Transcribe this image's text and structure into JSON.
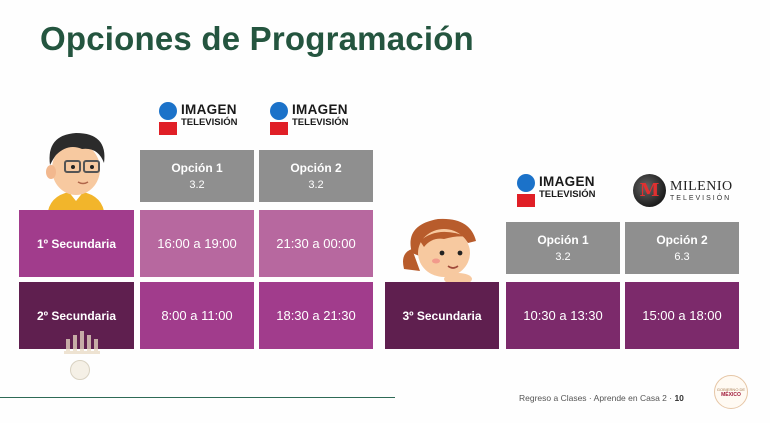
{
  "title": "Opciones de Programación",
  "logos": {
    "imagen": {
      "name": "IMAGEN",
      "sub": "TELEVISIÓN"
    },
    "milenio": {
      "name": "MILENIO",
      "sub": "TELEVISIÓN",
      "mark": "M"
    }
  },
  "left_table": {
    "options": [
      {
        "label": "Opción 1",
        "channel": "3.2"
      },
      {
        "label": "Opción 2",
        "channel": "3.2"
      }
    ],
    "rows": [
      {
        "grade": "1º Secundaria",
        "times": [
          "16:00 a 19:00",
          "21:30 a 00:00"
        ]
      },
      {
        "grade": "2º Secundaria",
        "times": [
          "8:00 a 11:00",
          "18:30 a 21:30"
        ]
      }
    ]
  },
  "right_table": {
    "options": [
      {
        "label": "Opción 1",
        "channel": "3.2"
      },
      {
        "label": "Opción 2",
        "channel": "6.3"
      }
    ],
    "rows": [
      {
        "grade": "3º Secundaria",
        "times": [
          "10:30 a 13:30",
          "15:00 a 18:00"
        ]
      }
    ]
  },
  "footer": {
    "text": "Regreso a Clases · Aprende en Casa 2 · ",
    "page": "10"
  },
  "gov_seal": {
    "line1": "GOBIERNO DE",
    "line2": "MÉXICO"
  },
  "colors": {
    "title": "#24553f",
    "option_header": "#8f8f8f",
    "row1": "#a13c8c",
    "row1_cells": "#b7689f",
    "row2": "#7c2a6b",
    "row3": "#5f1f4f",
    "imagen_blue": "#1b72c9",
    "imagen_red": "#e01f26"
  }
}
